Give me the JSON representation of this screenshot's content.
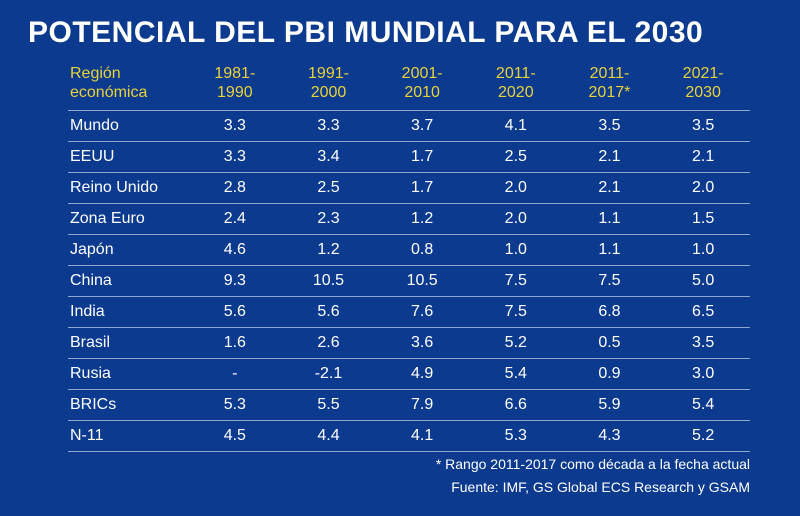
{
  "title": "POTENCIAL DEL PBI MUNDIAL PARA EL 2030",
  "table": {
    "type": "table",
    "background_color": "#0b3a8f",
    "header_color": "#e8d23a",
    "text_color": "#ffffff",
    "border_color": "rgba(255,255,255,0.55)",
    "title_fontsize": 30,
    "header_fontsize": 16,
    "cell_fontsize": 16,
    "region_header_line1": "Región",
    "region_header_line2": "económica",
    "period_headers": [
      {
        "line1": "1981-",
        "line2": "1990"
      },
      {
        "line1": "1991-",
        "line2": "2000"
      },
      {
        "line1": "2001-",
        "line2": "2010"
      },
      {
        "line1": "2011-",
        "line2": "2020"
      },
      {
        "line1": "2011-",
        "line2": "2017*"
      },
      {
        "line1": "2021-",
        "line2": "2030"
      }
    ],
    "rows": [
      {
        "region": "Mundo",
        "v": [
          "3.3",
          "3.3",
          "3.7",
          "4.1",
          "3.5",
          "3.5"
        ]
      },
      {
        "region": "EEUU",
        "v": [
          "3.3",
          "3.4",
          "1.7",
          "2.5",
          "2.1",
          "2.1"
        ]
      },
      {
        "region": "Reino Unido",
        "v": [
          "2.8",
          "2.5",
          "1.7",
          "2.0",
          "2.1",
          "2.0"
        ]
      },
      {
        "region": "Zona Euro",
        "v": [
          "2.4",
          "2.3",
          "1.2",
          "2.0",
          "1.1",
          "1.5"
        ]
      },
      {
        "region": "Japón",
        "v": [
          "4.6",
          "1.2",
          "0.8",
          "1.0",
          "1.1",
          "1.0"
        ]
      },
      {
        "region": "China",
        "v": [
          "9.3",
          "10.5",
          "10.5",
          "7.5",
          "7.5",
          "5.0"
        ]
      },
      {
        "region": "India",
        "v": [
          "5.6",
          "5.6",
          "7.6",
          "7.5",
          "6.8",
          "6.5"
        ]
      },
      {
        "region": "Brasil",
        "v": [
          "1.6",
          "2.6",
          "3.6",
          "5.2",
          "0.5",
          "3.5"
        ]
      },
      {
        "region": "Rusia",
        "v": [
          "-",
          "-2.1",
          "4.9",
          "5.4",
          "0.9",
          "3.0"
        ]
      },
      {
        "region": "BRICs",
        "v": [
          "5.3",
          "5.5",
          "7.9",
          "6.6",
          "5.9",
          "5.4"
        ]
      },
      {
        "region": "N-11",
        "v": [
          "4.5",
          "4.4",
          "4.1",
          "5.3",
          "4.3",
          "5.2"
        ]
      }
    ]
  },
  "footnote1": "* Rango 2011-2017 como década a la fecha actual",
  "footnote2": "Fuente: IMF, GS Global ECS Research y GSAM"
}
